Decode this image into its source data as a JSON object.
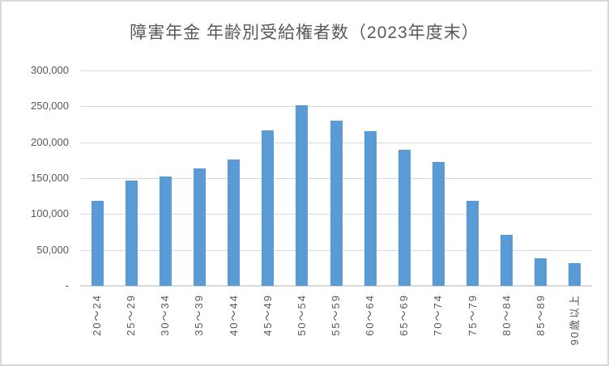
{
  "chart_data": {
    "type": "bar",
    "title": "障害年金 年齢別受給権者数（2023年度末）",
    "categories": [
      "20～24",
      "25～29",
      "30～34",
      "35～39",
      "40～44",
      "45～49",
      "50～54",
      "55～59",
      "60～64",
      "65～69",
      "70～74",
      "75～79",
      "80～84",
      "85～89",
      "90歳以上"
    ],
    "values": [
      118000,
      147000,
      152000,
      163000,
      176000,
      216000,
      252000,
      230000,
      215000,
      190000,
      173000,
      118000,
      71000,
      38000,
      32000
    ],
    "xlabel": "",
    "ylabel": "",
    "ylim": [
      0,
      300000
    ],
    "ytick_values": [
      0,
      50000,
      100000,
      150000,
      200000,
      250000,
      300000
    ],
    "ytick_labels": [
      "-",
      "50,000",
      "100,000",
      "150,000",
      "200,000",
      "250,000",
      "300,000"
    ],
    "grid": true,
    "legend": "none",
    "colors": {
      "bar": "#5B9BD5",
      "gridline": "#D9D9D9",
      "axis_line": "#D9D9D9",
      "text": "#595959",
      "border": "#D9D9D9",
      "background": "#FFFFFF"
    }
  }
}
